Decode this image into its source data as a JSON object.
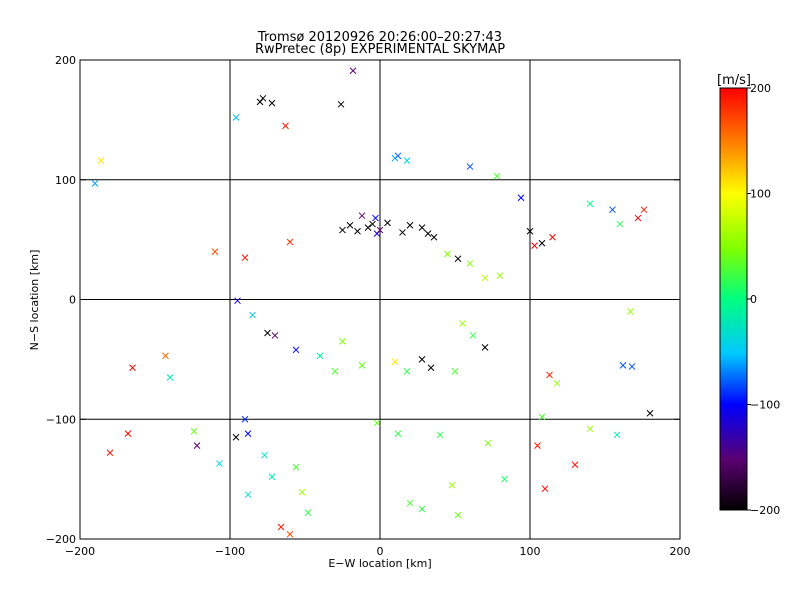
{
  "chart_data": {
    "type": "scatter",
    "title": "Tromsø 20120926 20:26:00–20:27:43",
    "subtitle": "RwPretec (8p) EXPERIMENTAL SKYMAP",
    "xlabel": "E−W location [km]",
    "ylabel": "N−S location [km]",
    "xlim": [
      -200,
      200
    ],
    "ylim": [
      -200,
      200
    ],
    "xticks": [
      -200,
      -100,
      0,
      100,
      200
    ],
    "yticks": [
      -200,
      -100,
      0,
      100,
      200
    ],
    "xtick_labels": [
      "−200",
      "−100",
      "0",
      "100",
      "200"
    ],
    "ytick_labels": [
      "−200",
      "−100",
      "0",
      "100",
      "200"
    ],
    "grid": true,
    "colorbar": {
      "label": "[m/s]",
      "range": [
        -200,
        200
      ],
      "ticks": [
        200,
        100,
        0,
        -100,
        -200
      ],
      "tick_labels": [
        "200",
        "100",
        "0",
        "−100",
        "−200"
      ],
      "colors": [
        "#000000",
        "#5a0070",
        "#0000ff",
        "#00c8ff",
        "#00ff80",
        "#80ff00",
        "#ffff00",
        "#ff8000",
        "#ff0000"
      ]
    },
    "markers": [
      "dot",
      "x"
    ],
    "series": [
      {
        "marker": "x",
        "points": [
          [
            -190,
            97,
            -60
          ],
          [
            -186,
            116,
            110
          ],
          [
            -96,
            152,
            -50
          ],
          [
            -80,
            165,
            -200
          ],
          [
            -78,
            168,
            -200
          ],
          [
            -72,
            164,
            -200
          ],
          [
            -63,
            145,
            190
          ],
          [
            -26,
            163,
            -200
          ],
          [
            12,
            120,
            -80
          ],
          [
            10,
            118,
            -60
          ],
          [
            18,
            116,
            -40
          ],
          [
            60,
            111,
            -80
          ],
          [
            78,
            103,
            30
          ],
          [
            -18,
            191,
            -150
          ],
          [
            -95,
            -1,
            -120
          ],
          [
            -85,
            -13,
            -50
          ],
          [
            -122,
            -122,
            -150
          ],
          [
            -107,
            -137,
            -40
          ],
          [
            -96,
            -115,
            -200
          ],
          [
            -90,
            -100,
            -90
          ],
          [
            -88,
            -112,
            -100
          ],
          [
            -77,
            -130,
            -30
          ],
          [
            -88,
            -163,
            -30
          ],
          [
            -72,
            -148,
            -20
          ],
          [
            -56,
            -140,
            30
          ],
          [
            -52,
            -161,
            60
          ],
          [
            -48,
            -178,
            20
          ],
          [
            -60,
            -196,
            170
          ],
          [
            -66,
            -190,
            190
          ],
          [
            -180,
            -128,
            190
          ],
          [
            -168,
            -112,
            195
          ],
          [
            -165,
            -57,
            200
          ],
          [
            -143,
            -47,
            160
          ],
          [
            -140,
            -65,
            -20
          ],
          [
            -124,
            -110,
            40
          ],
          [
            -12,
            -55,
            40
          ],
          [
            -30,
            -60,
            30
          ],
          [
            20,
            -170,
            30
          ],
          [
            28,
            -175,
            20
          ],
          [
            48,
            -155,
            60
          ],
          [
            52,
            -180,
            40
          ],
          [
            83,
            -150,
            10
          ],
          [
            72,
            -120,
            50
          ],
          [
            40,
            -113,
            20
          ],
          [
            -2,
            -103,
            40
          ],
          [
            12,
            -112,
            20
          ],
          [
            110,
            -158,
            200
          ],
          [
            105,
            -122,
            190
          ],
          [
            108,
            -98,
            30
          ],
          [
            113,
            -63,
            190
          ],
          [
            118,
            -70,
            60
          ],
          [
            140,
            -108,
            60
          ],
          [
            130,
            -138,
            195
          ],
          [
            158,
            -113,
            -20
          ],
          [
            167,
            -10,
            60
          ],
          [
            94,
            85,
            -100
          ],
          [
            100,
            57,
            -200
          ],
          [
            108,
            47,
            -200
          ],
          [
            103,
            45,
            200
          ],
          [
            115,
            52,
            200
          ],
          [
            140,
            80,
            0
          ],
          [
            155,
            75,
            -80
          ],
          [
            160,
            63,
            20
          ],
          [
            180,
            -95,
            -200
          ],
          [
            176,
            75,
            190
          ],
          [
            172,
            68,
            200
          ],
          [
            168,
            -56,
            -80
          ],
          [
            162,
            -55,
            -80
          ],
          [
            -60,
            48,
            180
          ],
          [
            -90,
            35,
            190
          ],
          [
            -110,
            40,
            170
          ],
          [
            -40,
            -47,
            -10
          ],
          [
            -25,
            -35,
            50
          ],
          [
            10,
            -52,
            110
          ],
          [
            18,
            -60,
            20
          ],
          [
            28,
            -50,
            -200
          ],
          [
            34,
            -57,
            -200
          ],
          [
            50,
            -60,
            30
          ],
          [
            62,
            -30,
            20
          ],
          [
            70,
            -40,
            -200
          ],
          [
            55,
            -20,
            60
          ],
          [
            80,
            20,
            60
          ],
          [
            70,
            18,
            70
          ],
          [
            60,
            30,
            50
          ],
          [
            52,
            34,
            -200
          ],
          [
            45,
            38,
            50
          ],
          [
            -56,
            -42,
            -100
          ],
          [
            -70,
            -30,
            -150
          ],
          [
            -75,
            -28,
            -200
          ],
          [
            -8,
            60,
            -200
          ],
          [
            -5,
            63,
            -200
          ],
          [
            -15,
            57,
            -200
          ],
          [
            -2,
            55,
            -120
          ],
          [
            0,
            58,
            -150
          ],
          [
            -20,
            62,
            -200
          ],
          [
            -25,
            58,
            -200
          ],
          [
            -12,
            70,
            -150
          ],
          [
            -3,
            68,
            -100
          ],
          [
            5,
            64,
            -200
          ],
          [
            15,
            56,
            -200
          ],
          [
            20,
            62,
            -200
          ],
          [
            28,
            60,
            -200
          ],
          [
            32,
            55,
            -200
          ],
          [
            36,
            52,
            -200
          ]
        ]
      }
    ]
  }
}
